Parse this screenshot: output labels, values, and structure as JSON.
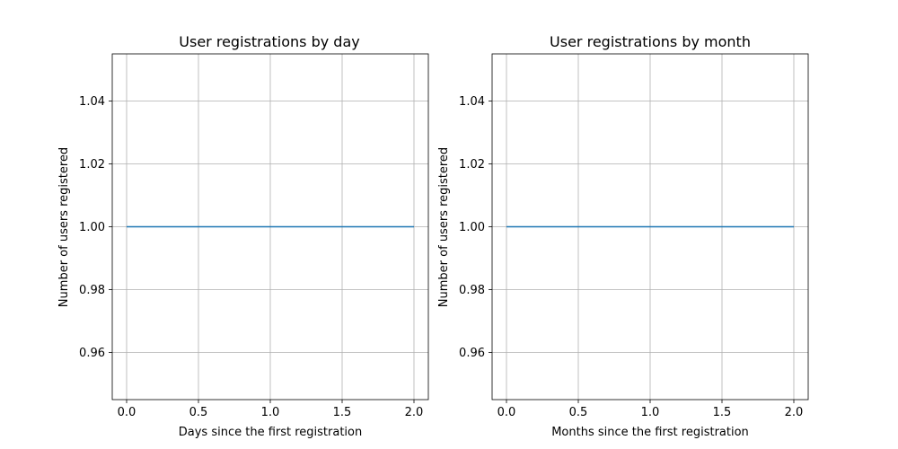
{
  "chart_data": [
    {
      "type": "line",
      "title": "User registrations by day",
      "xlabel": "Days since the first registration",
      "ylabel": "Number of users registered",
      "x": [
        0,
        1,
        2
      ],
      "series": [
        {
          "values": [
            1,
            1,
            1
          ],
          "color": "#1f77b4"
        }
      ],
      "xlim": [
        -0.1,
        2.1
      ],
      "ylim": [
        0.945,
        1.055
      ],
      "xticks": [
        0.0,
        0.5,
        1.0,
        1.5,
        2.0
      ],
      "xtick_labels": [
        "0.0",
        "0.5",
        "1.0",
        "1.5",
        "2.0"
      ],
      "yticks": [
        0.96,
        0.98,
        1.0,
        1.02,
        1.04
      ],
      "ytick_labels": [
        "0.96",
        "0.98",
        "1.00",
        "1.02",
        "1.04"
      ],
      "grid": true
    },
    {
      "type": "line",
      "title": "User registrations by month",
      "xlabel": "Months since the first registration",
      "ylabel": "Number of users registered",
      "x": [
        0,
        1,
        2
      ],
      "series": [
        {
          "values": [
            1,
            1,
            1
          ],
          "color": "#1f77b4"
        }
      ],
      "xlim": [
        -0.1,
        2.1
      ],
      "ylim": [
        0.945,
        1.055
      ],
      "xticks": [
        0.0,
        0.5,
        1.0,
        1.5,
        2.0
      ],
      "xtick_labels": [
        "0.0",
        "0.5",
        "1.0",
        "1.5",
        "2.0"
      ],
      "yticks": [
        0.96,
        0.98,
        1.0,
        1.02,
        1.04
      ],
      "ytick_labels": [
        "0.96",
        "0.98",
        "1.00",
        "1.02",
        "1.04"
      ],
      "grid": true
    }
  ]
}
